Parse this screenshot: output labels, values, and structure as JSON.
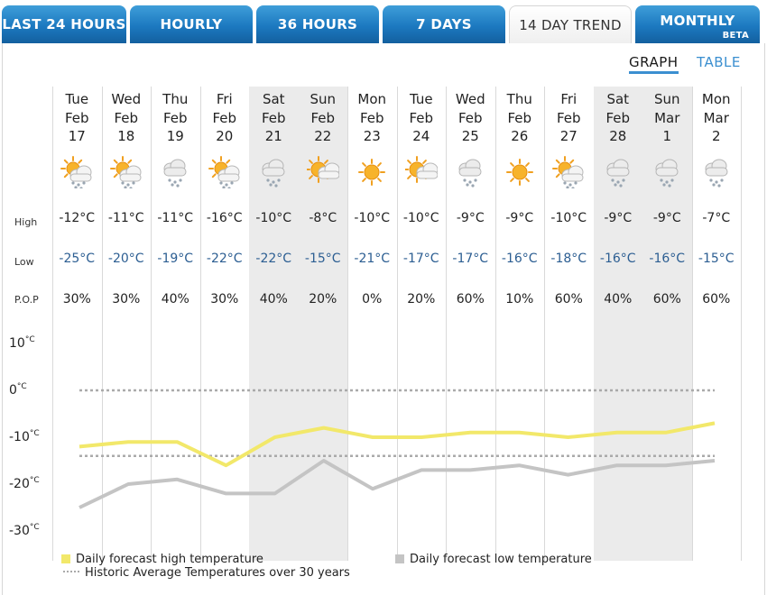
{
  "tabs": [
    {
      "label": "LAST 24 HOURS",
      "active": false
    },
    {
      "label": "HOURLY",
      "active": false
    },
    {
      "label": "36 HOURS",
      "active": false
    },
    {
      "label": "7 DAYS",
      "active": false
    },
    {
      "label": "14 DAY TREND",
      "active": true
    },
    {
      "label": "MONTHLY",
      "badge": "BETA",
      "active": false
    }
  ],
  "view_toggle": {
    "graph": "GRAPH",
    "table": "TABLE",
    "selected": "graph"
  },
  "row_labels": {
    "high": "High",
    "low": "Low",
    "pop": "P.O.P"
  },
  "days": [
    {
      "dow": "Tue",
      "month": "Feb",
      "day": "17",
      "icon": "sun-cloud-snow-icon",
      "high": "-12°C",
      "low": "-25°C",
      "pop": "30%",
      "weekend": false
    },
    {
      "dow": "Wed",
      "month": "Feb",
      "day": "18",
      "icon": "sun-cloud-snow-icon",
      "high": "-11°C",
      "low": "-20°C",
      "pop": "30%",
      "weekend": false
    },
    {
      "dow": "Thu",
      "month": "Feb",
      "day": "19",
      "icon": "cloud-snow-icon",
      "high": "-11°C",
      "low": "-19°C",
      "pop": "40%",
      "weekend": false
    },
    {
      "dow": "Fri",
      "month": "Feb",
      "day": "20",
      "icon": "sun-cloud-snow-icon",
      "high": "-16°C",
      "low": "-22°C",
      "pop": "30%",
      "weekend": false
    },
    {
      "dow": "Sat",
      "month": "Feb",
      "day": "21",
      "icon": "cloud-snow-icon",
      "high": "-10°C",
      "low": "-22°C",
      "pop": "40%",
      "weekend": true
    },
    {
      "dow": "Sun",
      "month": "Feb",
      "day": "22",
      "icon": "moon-cloud-icon",
      "high": "-8°C",
      "low": "-15°C",
      "pop": "20%",
      "weekend": true
    },
    {
      "dow": "Mon",
      "month": "Feb",
      "day": "23",
      "icon": "sun-icon",
      "high": "-10°C",
      "low": "-21°C",
      "pop": "0%",
      "weekend": false
    },
    {
      "dow": "Tue",
      "month": "Feb",
      "day": "24",
      "icon": "moon-cloud-icon",
      "high": "-10°C",
      "low": "-17°C",
      "pop": "20%",
      "weekend": false
    },
    {
      "dow": "Wed",
      "month": "Feb",
      "day": "25",
      "icon": "cloud-snow-icon",
      "high": "-9°C",
      "low": "-17°C",
      "pop": "60%",
      "weekend": false
    },
    {
      "dow": "Thu",
      "month": "Feb",
      "day": "26",
      "icon": "sun-icon",
      "high": "-9°C",
      "low": "-16°C",
      "pop": "10%",
      "weekend": false
    },
    {
      "dow": "Fri",
      "month": "Feb",
      "day": "27",
      "icon": "sun-cloud-snow-icon",
      "high": "-10°C",
      "low": "-18°C",
      "pop": "60%",
      "weekend": false
    },
    {
      "dow": "Sat",
      "month": "Feb",
      "day": "28",
      "icon": "cloud-snow-icon",
      "high": "-9°C",
      "low": "-16°C",
      "pop": "40%",
      "weekend": true
    },
    {
      "dow": "Sun",
      "month": "Mar",
      "day": "1",
      "icon": "cloud-snow-icon",
      "high": "-9°C",
      "low": "-16°C",
      "pop": "60%",
      "weekend": true
    },
    {
      "dow": "Mon",
      "month": "Mar",
      "day": "2",
      "icon": "cloud-snow-icon",
      "high": "-7°C",
      "low": "-15°C",
      "pop": "60%",
      "weekend": false
    }
  ],
  "chart_data": {
    "type": "line",
    "yticks": [
      {
        "value": 10,
        "label": "10"
      },
      {
        "value": 0,
        "label": "0"
      },
      {
        "value": -10,
        "label": "-10"
      },
      {
        "value": -20,
        "label": "-20"
      },
      {
        "value": -30,
        "label": "-30"
      }
    ],
    "tick_unit": "°C",
    "ylim": [
      -30,
      10
    ],
    "series": [
      {
        "name": "Daily forecast high temperature",
        "color": "#f2e86a",
        "values": [
          -12,
          -11,
          -11,
          -16,
          -10,
          -8,
          -10,
          -10,
          -9,
          -9,
          -10,
          -9,
          -9,
          -7
        ]
      },
      {
        "name": "Daily forecast low temperature",
        "color": "#c4c4c4",
        "values": [
          -25,
          -20,
          -19,
          -22,
          -22,
          -15,
          -21,
          -17,
          -17,
          -16,
          -18,
          -16,
          -16,
          -15
        ]
      }
    ],
    "historic": {
      "name": "Historic Average Temperatures over 30 years",
      "color": "#aaaaaa",
      "high": 0,
      "low": -14
    }
  },
  "colors": {
    "tab": "#1c79c0",
    "accent": "#3b8fd0",
    "weekend": "#ebebeb",
    "low_text": "#2c5e92"
  }
}
